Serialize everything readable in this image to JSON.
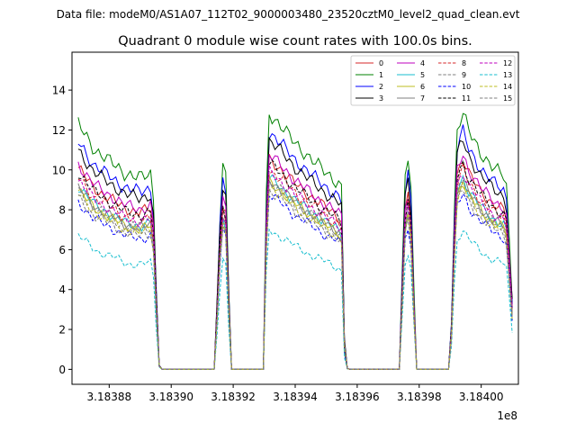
{
  "chart_data": {
    "type": "line",
    "suptitle": "Data file: modeM0/AS1A07_112T02_9000003480_23520cztM0_level2_quad_clean.evt",
    "title": "Quadrant 0 module wise count rates with 100.0s bins.",
    "xlabel": "",
    "ylabel": "",
    "x_offset_label": "1e8",
    "xlim": [
      3.183868,
      3.184012
    ],
    "ylim": [
      -0.75,
      15.9
    ],
    "x_ticks": [
      3.18388,
      3.1839,
      3.18392,
      3.18394,
      3.18396,
      3.18398,
      3.184
    ],
    "x_tick_labels": [
      "3.18388",
      "3.18390",
      "3.18392",
      "3.18394",
      "3.18396",
      "3.18398",
      "3.18400"
    ],
    "y_ticks": [
      0,
      2,
      4,
      6,
      8,
      10,
      12,
      14
    ],
    "y_tick_labels": [
      "0",
      "2",
      "4",
      "6",
      "8",
      "10",
      "12",
      "14"
    ],
    "legend_position": "top-right",
    "envelope_template": {
      "x": [
        3.18387,
        3.183875,
        3.18388,
        3.183885,
        3.18389,
        3.183894,
        3.183896,
        3.183897,
        3.1839,
        3.183914,
        3.183916,
        3.183917,
        3.183918,
        3.183919,
        3.18393,
        3.183931,
        3.183935,
        3.18394,
        3.183945,
        3.18395,
        3.183954,
        3.183955,
        3.183956,
        3.183957,
        3.18396,
        3.183974,
        3.183975,
        3.183976,
        3.183977,
        3.183979,
        3.18398,
        3.18399,
        3.183992,
        3.183994,
        3.183996,
        3.184,
        3.184004,
        3.184008,
        3.18401
      ],
      "v": [
        1.0,
        0.9,
        0.85,
        0.8,
        0.78,
        0.8,
        0.02,
        0.0,
        0.0,
        0.0,
        0.72,
        0.88,
        0.72,
        0.0,
        0.0,
        1.05,
        1.0,
        0.92,
        0.86,
        0.8,
        0.76,
        0.74,
        0.02,
        0.0,
        0.0,
        0.0,
        0.72,
        0.85,
        0.88,
        0.0,
        0.0,
        0.0,
        0.96,
        1.05,
        0.97,
        0.88,
        0.82,
        0.78,
        0.3
      ]
    },
    "series": [
      {
        "name": "0",
        "color": "#d62728",
        "dash": "solid",
        "level": 10.1
      },
      {
        "name": "1",
        "color": "#008000",
        "dash": "solid",
        "level": 12.3
      },
      {
        "name": "2",
        "color": "#0000ff",
        "dash": "solid",
        "level": 11.4
      },
      {
        "name": "3",
        "color": "#000000",
        "dash": "solid",
        "level": 11.0
      },
      {
        "name": "4",
        "color": "#bf00bf",
        "dash": "solid",
        "level": 10.3
      },
      {
        "name": "5",
        "color": "#17becf",
        "dash": "solid",
        "level": 9.2
      },
      {
        "name": "6",
        "color": "#bcbd22",
        "dash": "solid",
        "level": 9.0
      },
      {
        "name": "7",
        "color": "#7f7f7f",
        "dash": "solid",
        "level": 9.1
      },
      {
        "name": "8",
        "color": "#d62728",
        "dash": "dashed",
        "level": 9.6
      },
      {
        "name": "9",
        "color": "#7f7f7f",
        "dash": "dashed",
        "level": 9.0
      },
      {
        "name": "10",
        "color": "#0000ff",
        "dash": "dashed",
        "level": 8.4
      },
      {
        "name": "11",
        "color": "#000000",
        "dash": "dashed",
        "level": 9.9
      },
      {
        "name": "12",
        "color": "#bf00bf",
        "dash": "dashed",
        "level": 9.5
      },
      {
        "name": "13",
        "color": "#17becf",
        "dash": "dashed",
        "level": 6.7
      },
      {
        "name": "14",
        "color": "#bcbd22",
        "dash": "dashed",
        "level": 8.8
      },
      {
        "name": "15",
        "color": "#7f7f7f",
        "dash": "dashed",
        "level": 8.6
      }
    ]
  }
}
